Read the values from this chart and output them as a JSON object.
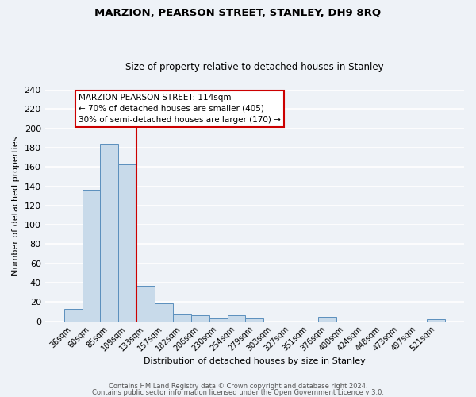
{
  "title": "MARZION, PEARSON STREET, STANLEY, DH9 8RQ",
  "subtitle": "Size of property relative to detached houses in Stanley",
  "xlabel": "Distribution of detached houses by size in Stanley",
  "ylabel": "Number of detached properties",
  "bar_labels": [
    "36sqm",
    "60sqm",
    "85sqm",
    "109sqm",
    "133sqm",
    "157sqm",
    "182sqm",
    "206sqm",
    "230sqm",
    "254sqm",
    "279sqm",
    "303sqm",
    "327sqm",
    "351sqm",
    "376sqm",
    "400sqm",
    "424sqm",
    "448sqm",
    "473sqm",
    "497sqm",
    "521sqm"
  ],
  "bar_heights": [
    13,
    136,
    184,
    163,
    37,
    19,
    7,
    6,
    3,
    6,
    3,
    0,
    0,
    0,
    5,
    0,
    0,
    0,
    0,
    0,
    2
  ],
  "bar_color": "#c8daea",
  "bar_edge_color": "#5b8fbd",
  "vline_color": "#cc0000",
  "vline_x_idx": 3,
  "annotation_title": "MARZION PEARSON STREET: 114sqm",
  "annotation_line1": "← 70% of detached houses are smaller (405)",
  "annotation_line2": "30% of semi-detached houses are larger (170) →",
  "annotation_box_color": "white",
  "annotation_box_edge": "#cc0000",
  "ylim": [
    0,
    240
  ],
  "yticks": [
    0,
    20,
    40,
    60,
    80,
    100,
    120,
    140,
    160,
    180,
    200,
    220,
    240
  ],
  "footer1": "Contains HM Land Registry data © Crown copyright and database right 2024.",
  "footer2": "Contains public sector information licensed under the Open Government Licence v 3.0.",
  "bg_color": "#eef2f7",
  "grid_color": "#d0d8e4",
  "title_fontsize": 9.5,
  "subtitle_fontsize": 8.5
}
